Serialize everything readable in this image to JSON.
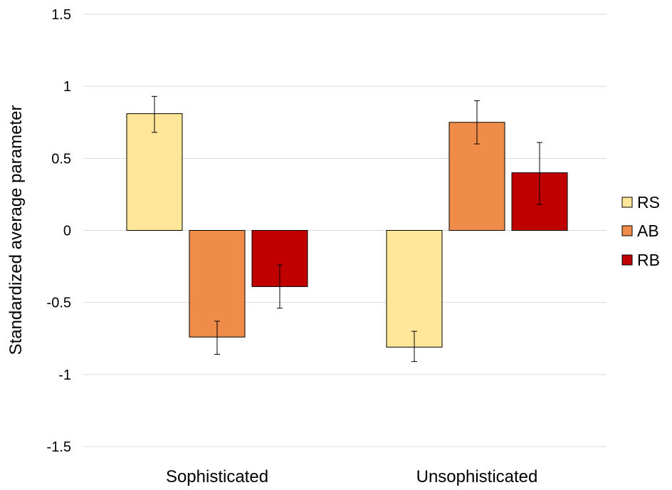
{
  "chart_data": {
    "type": "bar",
    "categories": [
      "Sophisticated",
      "Unsophisticated"
    ],
    "ylabel": "Standardized average parameter",
    "ylim": [
      -1.5,
      1.5
    ],
    "yticks": [
      "1.5",
      "1",
      "0.5",
      "0",
      "-0.5",
      "-1",
      "-1.5"
    ],
    "ytick_values": [
      1.5,
      1,
      0.5,
      0,
      -0.5,
      -1,
      -1.5
    ],
    "grid": true,
    "legend_position": "right",
    "series": [
      {
        "name": "RS",
        "values": [
          0.81,
          -0.81
        ],
        "err_low": [
          0.68,
          -0.91
        ],
        "err_high": [
          0.93,
          -0.7
        ],
        "color": "#FFE699"
      },
      {
        "name": "AB",
        "values": [
          -0.74,
          0.75
        ],
        "err_low": [
          -0.86,
          0.6
        ],
        "err_high": [
          -0.63,
          0.9
        ],
        "color": "#F08C4A"
      },
      {
        "name": "RB",
        "values": [
          -0.39,
          0.4
        ],
        "err_low": [
          -0.54,
          0.18
        ],
        "err_high": [
          -0.24,
          0.61
        ],
        "color": "#C00000"
      }
    ]
  }
}
